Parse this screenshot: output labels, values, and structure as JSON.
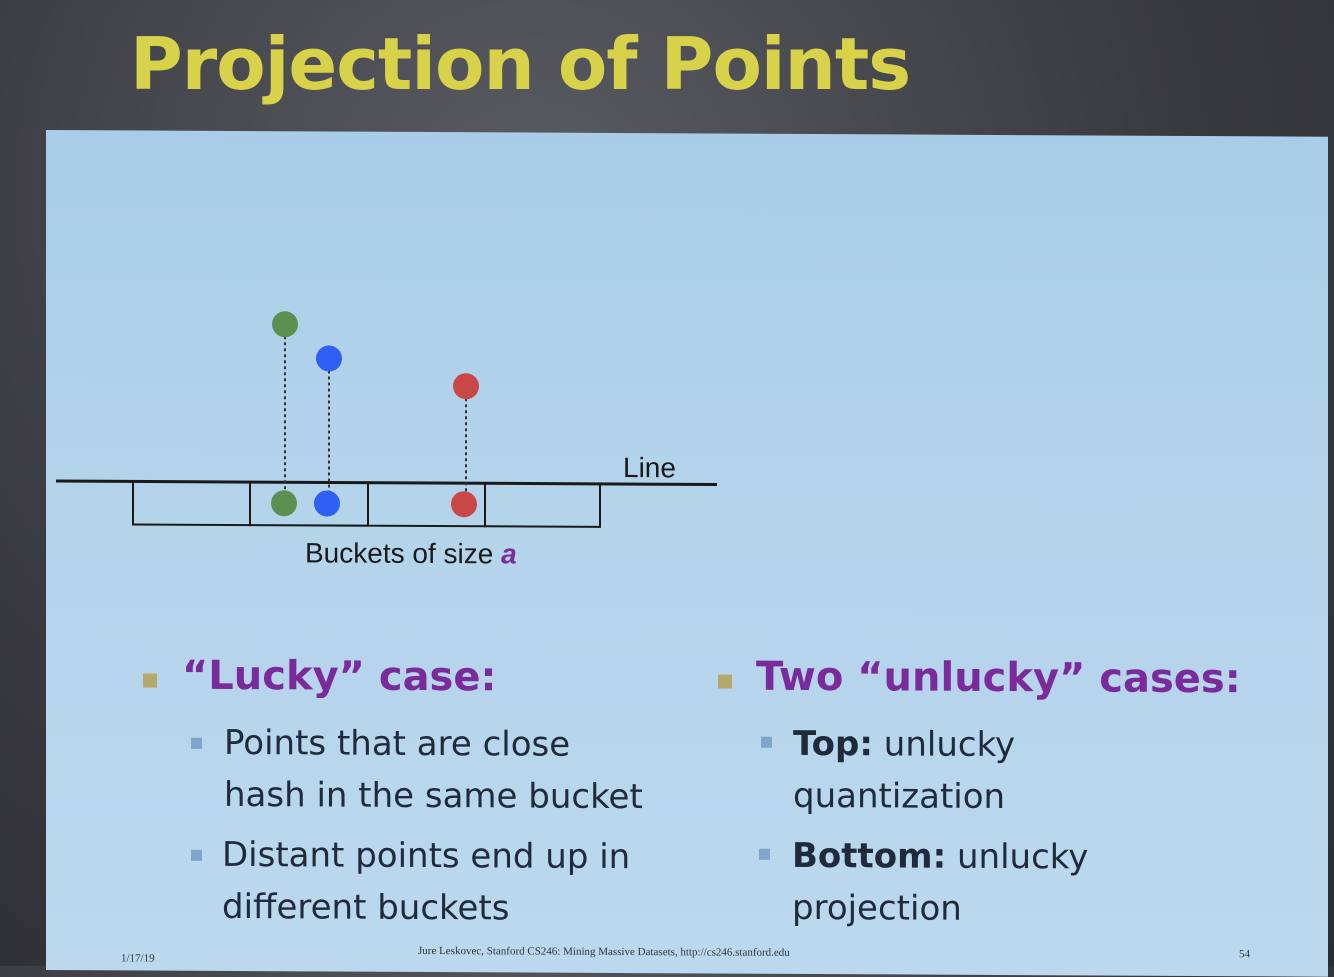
{
  "slide": {
    "title": "Projection of Points"
  },
  "diagram": {
    "line_label": "Line",
    "buckets_caption_prefix": "Buckets of size ",
    "buckets_caption_var": "a",
    "point_colors": {
      "green": "#5d8f50",
      "blue": "#2f5ff3",
      "red": "#c94747"
    }
  },
  "left_column": {
    "heading": "“Lucky” case:",
    "items": [
      {
        "line1": "Points that are close",
        "line2": "hash in the same bucket"
      },
      {
        "line1": "Distant points end up in",
        "line2": "different buckets"
      }
    ]
  },
  "right_column": {
    "heading": "Two “unlucky” cases:",
    "items": [
      {
        "bold": "Top:",
        "rest": " unlucky",
        "line2": "quantization"
      },
      {
        "bold": "Bottom:",
        "rest": " unlucky",
        "line2": "projection"
      }
    ]
  },
  "footer": {
    "date": "1/17/19",
    "credit": "Jure Leskovec, Stanford CS246: Mining Massive Datasets, http://cs246.stanford.edu",
    "page": "54"
  }
}
